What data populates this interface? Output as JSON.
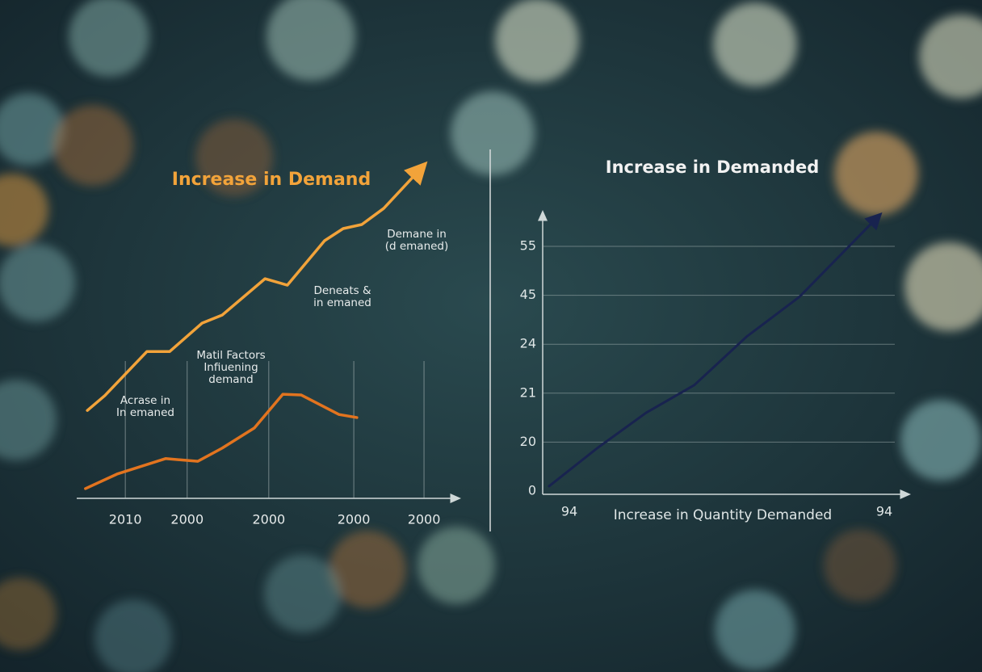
{
  "chart_data": [
    {
      "type": "line",
      "title": "Increase in Demand",
      "xlim": [
        0,
        100
      ],
      "ylim": [
        0,
        100
      ],
      "xticks": [
        {
          "value": 12.8,
          "label": "2010"
        },
        {
          "value": 29.1,
          "label": "2000"
        },
        {
          "value": 50.6,
          "label": "2000"
        },
        {
          "value": 73,
          "label": "2000"
        },
        {
          "value": 91.5,
          "label": "2000"
        }
      ],
      "grid": true,
      "series": [
        {
          "color": "#f2a33a",
          "x": [
            2.8,
            7.4,
            18.5,
            24.5,
            33,
            38.3,
            49.6,
            55.5,
            65.3,
            70.2,
            75.1,
            80.9,
            90.4
          ],
          "values": [
            26.1,
            30.5,
            43.6,
            43.6,
            52,
            54.4,
            65.2,
            63.3,
            76.5,
            80.1,
            81.3,
            86.1,
            97.6
          ]
        },
        {
          "color": "#e2741f",
          "x": [
            2.3,
            10.6,
            23.4,
            31.9,
            38.3,
            46.8,
            54.3,
            59.1,
            69.1,
            73.8
          ],
          "values": [
            2.9,
            7.2,
            11.8,
            11,
            14.9,
            20.9,
            30.9,
            30.7,
            24.9,
            24
          ]
        }
      ],
      "annotations": [
        [
          "Acrase in",
          "In emaned"
        ],
        [
          "Matil Factors",
          "Infiuening",
          "demand"
        ],
        [
          "Deneats &",
          "in emaned"
        ],
        [
          "Demane in",
          "(d emaned)"
        ]
      ]
    },
    {
      "type": "line",
      "title": "Increase in Demanded",
      "x_label": "Increase in Quantity Demanded",
      "categories": [
        "94",
        "94"
      ],
      "xlim": [
        0,
        100
      ],
      "yticks": [
        0,
        20,
        21,
        24,
        45,
        55
      ],
      "grid": true,
      "series": [
        {
          "color": "#18234f",
          "x": [
            1.8,
            15.5,
            29.1,
            42.7,
            57.5,
            72.3,
            93.9
          ],
          "values": [
            2,
            17.7,
            20.6,
            21.5,
            27.4,
            44.4,
            60.7
          ]
        }
      ]
    }
  ]
}
